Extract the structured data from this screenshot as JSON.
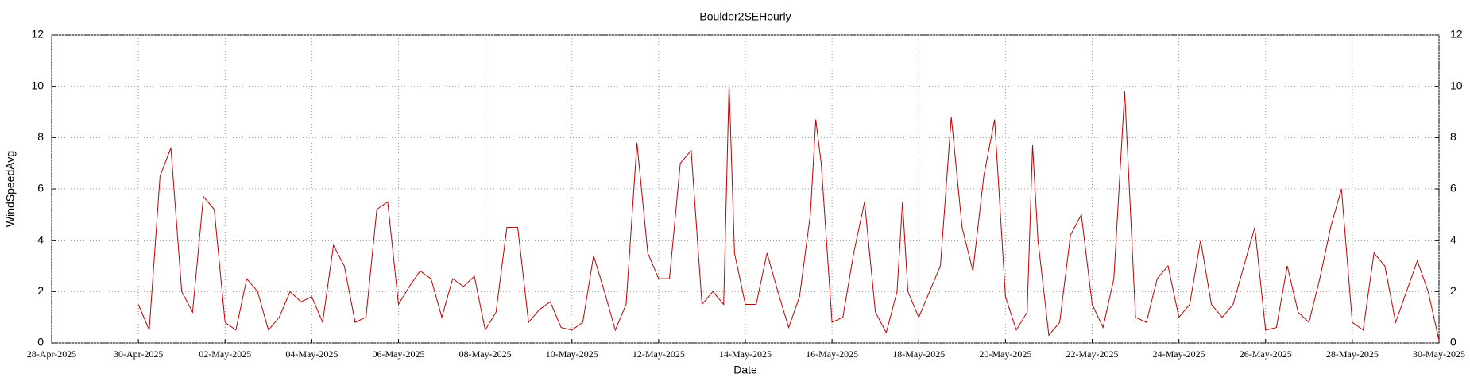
{
  "chart_data": {
    "type": "line",
    "title": "Boulder2SEHourly",
    "xlabel": "Date",
    "ylabel": "WindSpeedAvg",
    "color": "#c00000",
    "grid": true,
    "x": [
      120,
      120.25,
      120.5,
      120.75,
      121,
      121.25,
      121.5,
      121.75,
      122,
      122.25,
      122.5,
      122.75,
      123,
      123.25,
      123.5,
      123.75,
      124,
      124.25,
      124.5,
      124.75,
      125,
      125.25,
      125.5,
      125.75,
      126,
      126.25,
      126.5,
      126.75,
      127,
      127.25,
      127.5,
      127.75,
      128,
      128.25,
      128.5,
      128.75,
      129,
      129.25,
      129.5,
      129.75,
      130,
      130.25,
      130.5,
      130.75,
      131,
      131.25,
      131.5,
      131.75,
      132,
      132.25,
      132.5,
      132.75,
      133,
      133.25,
      133.5,
      133.625,
      133.75,
      134,
      134.25,
      134.5,
      134.75,
      135,
      135.25,
      135.5,
      135.625,
      135.75,
      136,
      136.25,
      136.5,
      136.75,
      137,
      137.25,
      137.5,
      137.625,
      137.75,
      138,
      138.25,
      138.5,
      138.75,
      139,
      139.25,
      139.5,
      139.75,
      140,
      140.25,
      140.5,
      140.625,
      140.75,
      141,
      141.25,
      141.5,
      141.75,
      142,
      142.25,
      142.5,
      142.75,
      143,
      143.25,
      143.5,
      143.75,
      144,
      144.25,
      144.5,
      144.75,
      145,
      145.25,
      145.5,
      145.75,
      146,
      146.25,
      146.5,
      146.75,
      147,
      147.25,
      147.5,
      147.75,
      148,
      148.25,
      148.5,
      148.75,
      149,
      149.25,
      149.5,
      149.75,
      150
    ],
    "values": [
      1.5,
      0.5,
      6.5,
      7.6,
      2,
      1.2,
      5.7,
      5.2,
      0.8,
      0.5,
      2.5,
      2,
      0.5,
      1,
      2,
      1.6,
      1.8,
      0.8,
      3.8,
      3,
      0.8,
      1,
      5.2,
      5.5,
      1.5,
      2.2,
      2.8,
      2.5,
      1,
      2.5,
      2.2,
      2.6,
      0.5,
      1.2,
      4.5,
      4.5,
      0.8,
      1.3,
      1.6,
      0.6,
      0.5,
      0.8,
      3.4,
      2,
      0.5,
      1.5,
      7.8,
      3.5,
      2.5,
      2.5,
      7,
      7.5,
      1.5,
      2,
      1.5,
      10.1,
      3.5,
      1.5,
      1.5,
      3.5,
      2,
      0.6,
      1.8,
      5,
      8.7,
      7,
      0.8,
      1,
      3.5,
      5.5,
      1.2,
      0.4,
      2,
      5.5,
      2,
      1,
      2,
      3,
      8.8,
      4.5,
      2.8,
      6.5,
      8.7,
      1.8,
      0.5,
      1.2,
      7.7,
      4,
      0.3,
      0.8,
      4.2,
      5,
      1.5,
      0.6,
      2.5,
      9.8,
      1,
      0.8,
      2.5,
      3,
      1,
      1.5,
      4,
      1.5,
      1,
      1.5,
      3,
      4.5,
      0.5,
      0.6,
      3,
      1.2,
      0.8,
      2.5,
      4.5,
      6,
      0.8,
      0.5,
      3.5,
      3,
      0.8,
      2,
      3.2,
      2,
      0.1
    ],
    "xlim": [
      118,
      150
    ],
    "xticks": [
      {
        "value": 118,
        "label": "28-Apr-2025"
      },
      {
        "value": 120,
        "label": "30-Apr-2025"
      },
      {
        "value": 122,
        "label": "02-May-2025"
      },
      {
        "value": 124,
        "label": "04-May-2025"
      },
      {
        "value": 126,
        "label": "06-May-2025"
      },
      {
        "value": 128,
        "label": "08-May-2025"
      },
      {
        "value": 130,
        "label": "10-May-2025"
      },
      {
        "value": 132,
        "label": "12-May-2025"
      },
      {
        "value": 134,
        "label": "14-May-2025"
      },
      {
        "value": 136,
        "label": "16-May-2025"
      },
      {
        "value": 138,
        "label": "18-May-2025"
      },
      {
        "value": 140,
        "label": "20-May-2025"
      },
      {
        "value": 142,
        "label": "22-May-2025"
      },
      {
        "value": 144,
        "label": "24-May-2025"
      },
      {
        "value": 146,
        "label": "26-May-2025"
      },
      {
        "value": 148,
        "label": "28-May-2025"
      },
      {
        "value": 150,
        "label": "30-May-2025"
      }
    ],
    "ylim": [
      0,
      12
    ],
    "yticks": [
      0,
      2,
      4,
      6,
      8,
      10,
      12
    ],
    "y2lim": [
      0,
      12
    ],
    "y2ticks": [
      0,
      2,
      4,
      6,
      8,
      10,
      12
    ]
  }
}
